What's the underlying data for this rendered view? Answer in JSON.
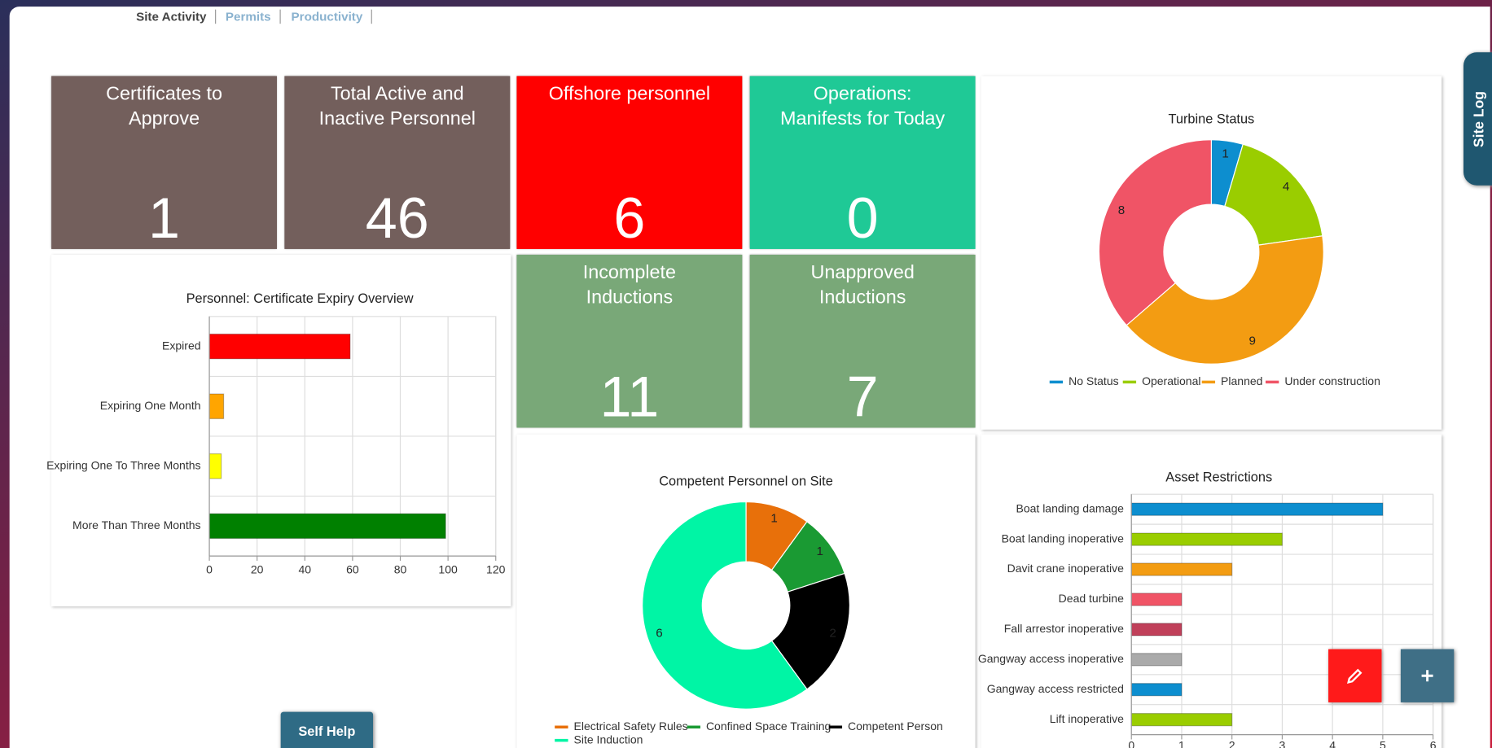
{
  "tabs": [
    "Site Activity",
    "Permits",
    "Productivity"
  ],
  "tiles": [
    {
      "title": "Certificates to Approve",
      "value": 1,
      "color": "#735f5c"
    },
    {
      "title": "Total Active and Inactive Personnel",
      "value": 46,
      "color": "#735f5c"
    },
    {
      "title": "Offshore personnel",
      "value": 6,
      "color": "#ff0000"
    },
    {
      "title": "Operations: Manifests for Today",
      "value": 0,
      "color": "#1fc996"
    },
    {
      "title": "Incomplete Inductions",
      "value": 11,
      "color": "#79a878"
    },
    {
      "title": "Unapproved Inductions",
      "value": 7,
      "color": "#79a878"
    }
  ],
  "chart_data": [
    {
      "type": "bar",
      "orientation": "horizontal",
      "title": "Personnel: Certificate Expiry Overview",
      "categories": [
        "Expired",
        "Expiring One Month",
        "Expiring One To Three Months",
        "More Than Three Months"
      ],
      "values": [
        59,
        6,
        5,
        99
      ],
      "colors": [
        "#ff0000",
        "#ffa500",
        "#ffff00",
        "#008000"
      ],
      "xlim": [
        0,
        120
      ],
      "xticks": [
        0,
        20,
        40,
        60,
        80,
        100,
        120
      ],
      "grid": true
    },
    {
      "type": "donut",
      "title": "Turbine Status",
      "categories": [
        "No Status",
        "Operational",
        "Planned",
        "Under construction"
      ],
      "values": [
        1,
        4,
        9,
        8
      ],
      "colors": [
        "#0d8ecf",
        "#9acd00",
        "#f39c12",
        "#f05466"
      ]
    },
    {
      "type": "donut",
      "title": "Competent Personnel on Site",
      "categories": [
        "Electrical Safety Rules",
        "Confined Space Training",
        "Competent Person",
        "Site Induction"
      ],
      "values": [
        1,
        1,
        2,
        6
      ],
      "colors": [
        "#e8700a",
        "#1a9a33",
        "#000000",
        "#00f5a5"
      ]
    },
    {
      "type": "bar",
      "orientation": "horizontal",
      "title": "Asset Restrictions",
      "categories": [
        "Boat landing damage",
        "Boat landing inoperative",
        "Davit crane inoperative",
        "Dead turbine",
        "Fall arrestor inoperative",
        "Gangway access inoperative",
        "Gangway access restricted",
        "Lift inoperative"
      ],
      "values": [
        5,
        3,
        2,
        1,
        1,
        1,
        1,
        2
      ],
      "colors": [
        "#0d8ecf",
        "#9acd00",
        "#f39c12",
        "#f05466",
        "#c0405a",
        "#aaaaaa",
        "#0d8ecf",
        "#9acd00"
      ],
      "xlim": [
        0,
        6
      ],
      "xticks": [
        0,
        1,
        2,
        3,
        4,
        5,
        6
      ],
      "grid": true
    }
  ],
  "buttons": {
    "self_help": "Self Help",
    "site_log": "Site Log"
  }
}
